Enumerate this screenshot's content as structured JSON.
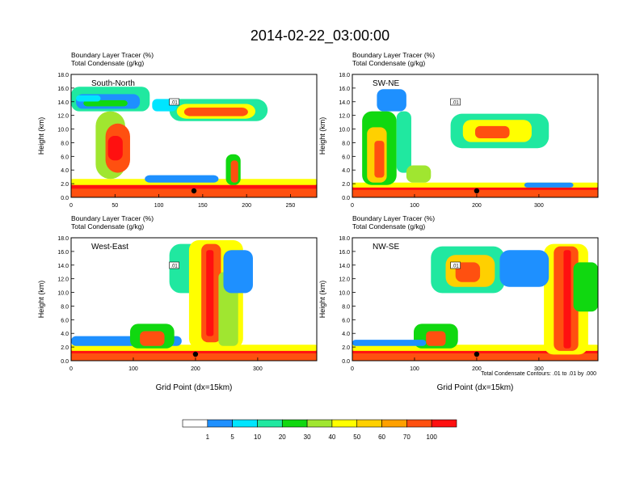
{
  "title": "2014-02-22_03:00:00",
  "colorbar": {
    "colors": [
      "#ffffff",
      "#1e90ff",
      "#00e5ff",
      "#20e8a0",
      "#10d810",
      "#a0e630",
      "#ffff00",
      "#ffd000",
      "#ffa000",
      "#ff5010",
      "#ff1010"
    ],
    "labels": [
      "1",
      "5",
      "10",
      "20",
      "30",
      "40",
      "50",
      "60",
      "70",
      "100"
    ]
  },
  "contour_note": "Total Condensate Contours: .01 to .01 by .000",
  "chart_data": [
    {
      "type": "heatmap",
      "header_line1": "Boundary Layer Tracer    (%)",
      "header_line2": "Total Condensate    (g/kg)",
      "panel_label": "South-North",
      "ylabel": "Height (km)",
      "xlabel": "",
      "xlim": [
        0,
        280
      ],
      "ylim": [
        0,
        18
      ],
      "xticks": [
        "0",
        "50",
        "100",
        "150",
        "200",
        "250"
      ],
      "yticks": [
        "0.0",
        "2.0",
        "4.0",
        "6.0",
        "8.0",
        "10.0",
        "12.0",
        "14.0",
        "16.0",
        "18.0"
      ],
      "contour_label": ".01",
      "marker_x": 140
    },
    {
      "type": "heatmap",
      "header_line1": "Boundary Layer Tracer    (%)",
      "header_line2": "Total Condensate    (g/kg)",
      "panel_label": "SW-NE",
      "ylabel": "Height (km)",
      "xlabel": "",
      "xlim": [
        0,
        395
      ],
      "ylim": [
        0,
        18
      ],
      "xticks": [
        "0",
        "100",
        "200",
        "300"
      ],
      "yticks": [
        "0.0",
        "2.0",
        "4.0",
        "6.0",
        "8.0",
        "10.0",
        "12.0",
        "14.0",
        "16.0",
        "18.0"
      ],
      "contour_label": ".01",
      "marker_x": 200
    },
    {
      "type": "heatmap",
      "header_line1": "Boundary Layer Tracer    (%)",
      "header_line2": "Total Condensate    (g/kg)",
      "panel_label": "West-East",
      "ylabel": "Height (km)",
      "xlabel": "Grid Point (dx=15km)",
      "xlim": [
        0,
        395
      ],
      "ylim": [
        0,
        18
      ],
      "xticks": [
        "0",
        "100",
        "200",
        "300"
      ],
      "yticks": [
        "0.0",
        "2.0",
        "4.0",
        "6.0",
        "8.0",
        "10.0",
        "12.0",
        "14.0",
        "16.0",
        "18.0"
      ],
      "contour_label": ".01",
      "marker_x": 200
    },
    {
      "type": "heatmap",
      "header_line1": "Boundary Layer Tracer    (%)",
      "header_line2": "Total Condensate    (g/kg)",
      "panel_label": "NW-SE",
      "ylabel": "Height (km)",
      "xlabel": "Grid Point (dx=15km)",
      "xlim": [
        0,
        395
      ],
      "ylim": [
        0,
        18
      ],
      "xticks": [
        "0",
        "100",
        "200",
        "300"
      ],
      "yticks": [
        "0.0",
        "2.0",
        "4.0",
        "6.0",
        "8.0",
        "10.0",
        "12.0",
        "14.0",
        "16.0",
        "18.0"
      ],
      "contour_label": ".01",
      "marker_x": 200
    }
  ]
}
